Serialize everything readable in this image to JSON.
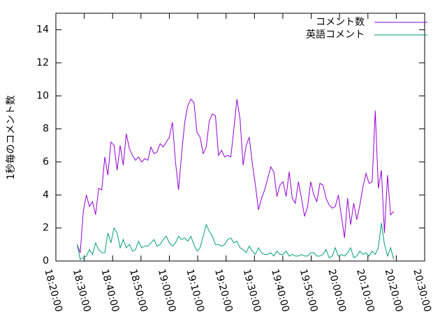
{
  "chart_data": {
    "type": "line",
    "ylabel": "1秒毎のコメント数",
    "x": [
      "18:27:30",
      "18:28:35",
      "18:29:40",
      "18:30:45",
      "18:31:50",
      "18:32:55",
      "18:34:00",
      "18:35:05",
      "18:36:10",
      "18:37:15",
      "18:38:20",
      "18:39:25",
      "18:40:30",
      "18:41:35",
      "18:42:40",
      "18:43:45",
      "18:44:50",
      "18:45:55",
      "18:47:00",
      "18:48:05",
      "18:49:10",
      "18:50:15",
      "18:51:20",
      "18:52:25",
      "18:53:30",
      "18:54:35",
      "18:55:40",
      "18:56:45",
      "18:57:50",
      "18:58:55",
      "19:00:00",
      "19:01:05",
      "19:02:10",
      "19:03:15",
      "19:04:20",
      "19:05:25",
      "19:06:30",
      "19:07:35",
      "19:08:40",
      "19:09:45",
      "19:10:50",
      "19:11:55",
      "19:13:00",
      "19:14:05",
      "19:15:10",
      "19:16:15",
      "19:17:20",
      "19:18:25",
      "19:19:30",
      "19:20:35",
      "19:21:40",
      "19:22:45",
      "19:23:50",
      "19:24:55",
      "19:26:00",
      "19:27:05",
      "19:28:10",
      "19:29:15",
      "19:30:20",
      "19:31:25",
      "19:32:30",
      "19:33:35",
      "19:34:40",
      "19:35:45",
      "19:36:50",
      "19:37:55",
      "19:39:00",
      "19:40:05",
      "19:41:10",
      "19:42:15",
      "19:43:20",
      "19:44:25",
      "19:45:30",
      "19:46:35",
      "19:47:40",
      "19:48:45",
      "19:49:50",
      "19:50:55",
      "19:52:00",
      "19:53:05",
      "19:54:10",
      "19:55:15",
      "19:56:20",
      "19:57:25",
      "19:58:30",
      "19:59:35",
      "20:00:40",
      "20:01:45",
      "20:02:50",
      "20:03:55",
      "20:05:00",
      "20:06:05",
      "20:07:10",
      "20:08:15",
      "20:09:20",
      "20:10:25",
      "20:11:30",
      "20:12:35",
      "20:13:40",
      "20:14:45",
      "20:15:50",
      "20:16:55",
      "20:18:00",
      "20:19:05"
    ],
    "series": [
      {
        "name": "コメント数",
        "color": "#9400d3",
        "values": [
          1.0,
          0.5,
          3.0,
          4.0,
          3.3,
          3.6,
          2.8,
          4.4,
          4.3,
          6.3,
          5.2,
          7.2,
          7.0,
          5.5,
          7.0,
          5.8,
          7.7,
          6.8,
          6.4,
          6.1,
          6.3,
          6.0,
          6.2,
          6.1,
          6.9,
          6.5,
          6.6,
          7.1,
          6.9,
          7.2,
          7.5,
          8.4,
          6.0,
          4.3,
          6.5,
          8.4,
          9.4,
          9.8,
          9.6,
          7.8,
          7.5,
          6.5,
          6.9,
          8.5,
          8.9,
          8.8,
          6.4,
          6.7,
          6.3,
          6.4,
          6.3,
          8.0,
          9.8,
          8.6,
          5.8,
          7.0,
          7.5,
          5.9,
          4.6,
          3.1,
          3.8,
          4.3,
          5.0,
          5.7,
          5.4,
          3.9,
          4.6,
          4.8,
          3.9,
          5.4,
          3.8,
          3.5,
          4.8,
          3.8,
          2.7,
          3.3,
          4.8,
          4.0,
          3.6,
          4.7,
          4.6,
          3.8,
          3.4,
          3.2,
          3.3,
          4.0,
          2.7,
          1.4,
          3.8,
          2.2,
          3.5,
          2.5,
          3.4,
          4.5,
          5.3,
          4.7,
          4.8,
          9.1,
          4.4,
          5.5,
          1.7,
          5.2,
          2.8,
          3.0
        ]
      },
      {
        "name": "英語コメント",
        "color": "#009e73",
        "values": [
          1.0,
          0.1,
          0.2,
          0.3,
          0.7,
          0.4,
          1.1,
          0.7,
          0.5,
          0.5,
          1.7,
          1.1,
          2.0,
          1.7,
          0.8,
          1.3,
          0.8,
          1.0,
          0.6,
          0.7,
          1.2,
          0.8,
          0.9,
          0.9,
          1.1,
          1.3,
          0.9,
          1.0,
          1.3,
          1.5,
          1.1,
          0.9,
          1.1,
          1.5,
          1.3,
          1.4,
          1.2,
          1.5,
          1.0,
          0.6,
          0.8,
          1.5,
          2.2,
          1.8,
          1.5,
          1.0,
          1.0,
          0.9,
          1.0,
          1.3,
          1.4,
          1.1,
          1.2,
          0.8,
          0.7,
          0.5,
          0.9,
          0.6,
          0.4,
          0.8,
          0.5,
          0.4,
          0.4,
          0.5,
          0.3,
          0.6,
          0.4,
          0.4,
          0.6,
          0.3,
          0.4,
          0.3,
          0.3,
          0.4,
          0.3,
          0.3,
          0.5,
          0.5,
          0.3,
          0.3,
          0.4,
          0.7,
          0.2,
          0.3,
          0.8,
          0.3,
          0.4,
          0.3,
          0.5,
          0.8,
          0.2,
          0.3,
          0.6,
          0.4,
          0.5,
          0.3,
          0.6,
          0.4,
          0.8,
          2.3,
          1.0,
          0.3,
          0.8,
          0.1
        ]
      }
    ],
    "xlim": [
      "18:20:00",
      "20:30:00"
    ],
    "xticks": [
      "18:20:00",
      "18:30:00",
      "18:40:00",
      "18:50:00",
      "19:00:00",
      "19:10:00",
      "19:20:00",
      "19:30:00",
      "19:40:00",
      "19:50:00",
      "20:00:00",
      "20:10:00",
      "20:20:00",
      "20:30:00"
    ],
    "ylim": [
      0,
      15
    ],
    "yticks": [
      0,
      2,
      4,
      6,
      8,
      10,
      12,
      14
    ],
    "grid": false,
    "legend": "top-right"
  }
}
